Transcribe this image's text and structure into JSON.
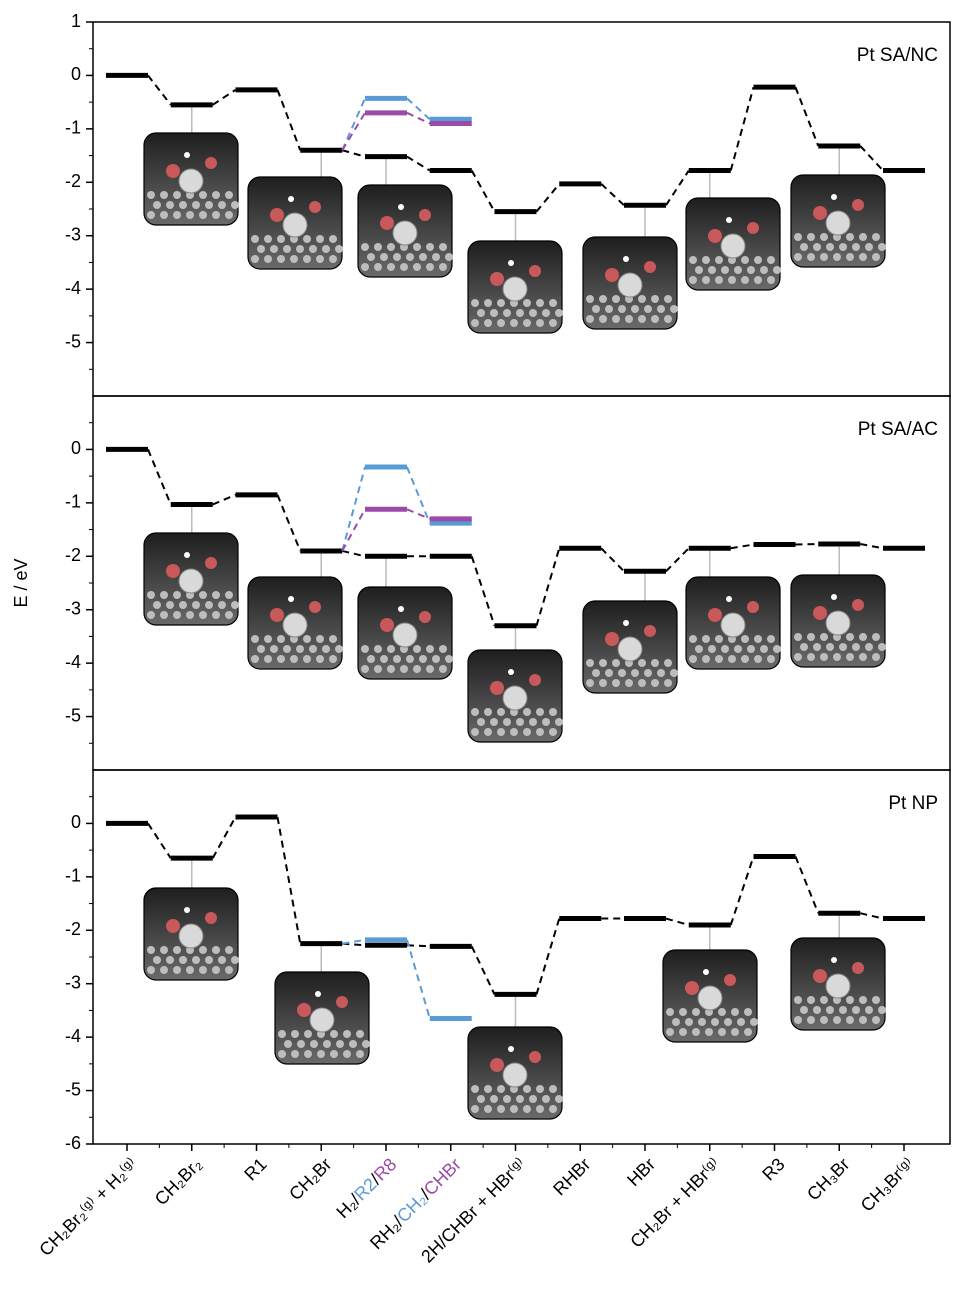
{
  "chart_data": [
    {
      "type": "energy-profile",
      "title": "Pt SA/NC",
      "ylim": [
        -6,
        1
      ],
      "yticks": [
        1,
        0,
        -1,
        -2,
        -3,
        -4,
        -5
      ],
      "series": [
        {
          "color": "#000000",
          "values": [
            0,
            -0.55,
            -0.27,
            -1.4,
            -1.52,
            -1.78,
            -2.55,
            -2.03,
            -2.43,
            -1.78,
            -0.22,
            -1.32,
            -1.78
          ]
        },
        {
          "color": "#5b9bd5",
          "values": [
            null,
            null,
            null,
            null,
            -0.43,
            -0.82,
            null,
            null,
            null,
            null,
            null,
            null,
            null
          ]
        },
        {
          "color": "#9b4aa8",
          "values": [
            null,
            null,
            null,
            null,
            -0.7,
            -0.9,
            null,
            null,
            null,
            null,
            null,
            null,
            null
          ]
        }
      ]
    },
    {
      "type": "energy-profile",
      "title": "Pt SA/AC",
      "y_label": "E / eV",
      "ylim": [
        -6,
        1
      ],
      "yticks": [
        0,
        -1,
        -2,
        -3,
        -4,
        -5
      ],
      "series": [
        {
          "color": "#000000",
          "values": [
            0,
            -1.03,
            -0.85,
            -1.9,
            -2.0,
            -2.0,
            -3.3,
            -1.85,
            -2.28,
            -1.85,
            -1.78,
            -1.77,
            -1.85
          ]
        },
        {
          "color": "#5b9bd5",
          "values": [
            null,
            null,
            null,
            null,
            -0.33,
            -1.38,
            null,
            null,
            null,
            null,
            null,
            null,
            null
          ]
        },
        {
          "color": "#9b4aa8",
          "values": [
            null,
            null,
            null,
            null,
            -1.12,
            -1.3,
            null,
            null,
            null,
            null,
            null,
            null,
            null
          ]
        }
      ]
    },
    {
      "type": "energy-profile",
      "title": "Pt NP",
      "ylim": [
        -6,
        1
      ],
      "yticks": [
        0,
        -1,
        -2,
        -3,
        -4,
        -5,
        -6
      ],
      "categories": [
        "CH₂Br₂⁽ᵍ⁾ + H₂⁽ᵍ⁾",
        "CH₂Br₂",
        "R1",
        "CH₂Br",
        [
          {
            "text": "H₂/",
            "color": "#000000"
          },
          {
            "text": "R2",
            "color": "#5b9bd5"
          },
          {
            "text": "/",
            "color": "#000000"
          },
          {
            "text": "R8",
            "color": "#9b4aa8"
          }
        ],
        [
          {
            "text": "RH₂/",
            "color": "#000000"
          },
          {
            "text": "CH₂",
            "color": "#5b9bd5"
          },
          {
            "text": "/",
            "color": "#000000"
          },
          {
            "text": "CHBr",
            "color": "#9b4aa8"
          }
        ],
        "2H/CHBr + HBr⁽ᵍ⁾",
        "RHBr",
        "HBr",
        "CH₂Br + HBr⁽ᵍ⁾",
        "R3",
        "CH₃Br",
        "CH₃Br⁽ᵍ⁾"
      ],
      "series": [
        {
          "color": "#000000",
          "values": [
            0,
            -0.65,
            0.12,
            -2.25,
            -2.28,
            -2.3,
            -3.2,
            -1.78,
            -1.78,
            -1.9,
            -0.62,
            -1.68,
            -1.78
          ]
        },
        {
          "color": "#5b9bd5",
          "values": [
            null,
            null,
            null,
            null,
            -2.18,
            -3.65,
            null,
            null,
            null,
            null,
            null,
            null,
            null
          ]
        }
      ]
    }
  ]
}
